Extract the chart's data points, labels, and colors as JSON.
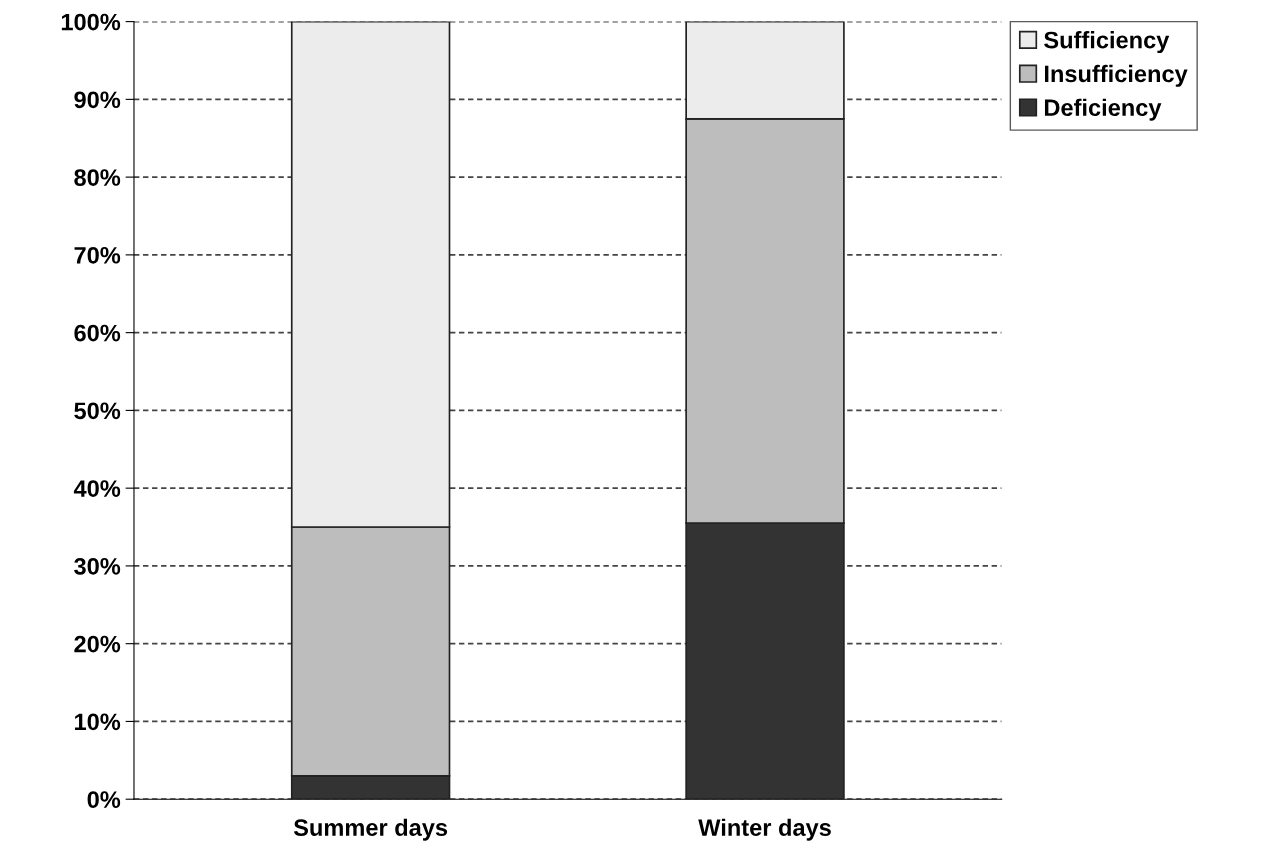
{
  "chart_data": {
    "type": "bar",
    "stacked": true,
    "categories": [
      "Summer days",
      "Winter days"
    ],
    "series": [
      {
        "name": "Deficiency",
        "color": "#333333",
        "values": [
          3,
          35.5
        ]
      },
      {
        "name": "Insufficiency",
        "color": "#bdbdbd",
        "values": [
          32,
          52
        ]
      },
      {
        "name": "Sufficiency",
        "color": "#ececec",
        "values": [
          65,
          12.5
        ]
      }
    ],
    "ylim": [
      0,
      100
    ],
    "yticks": [
      {
        "value": 0,
        "label": "0%"
      },
      {
        "value": 10,
        "label": "10%"
      },
      {
        "value": 20,
        "label": "20%"
      },
      {
        "value": 30,
        "label": "30%"
      },
      {
        "value": 40,
        "label": "40%"
      },
      {
        "value": 50,
        "label": "50%"
      },
      {
        "value": 60,
        "label": "60%"
      },
      {
        "value": 70,
        "label": "70%"
      },
      {
        "value": 80,
        "label": "80%"
      },
      {
        "value": 90,
        "label": "90%"
      },
      {
        "value": 100,
        "label": "100%"
      }
    ],
    "grid": "y",
    "legend": "top right"
  }
}
